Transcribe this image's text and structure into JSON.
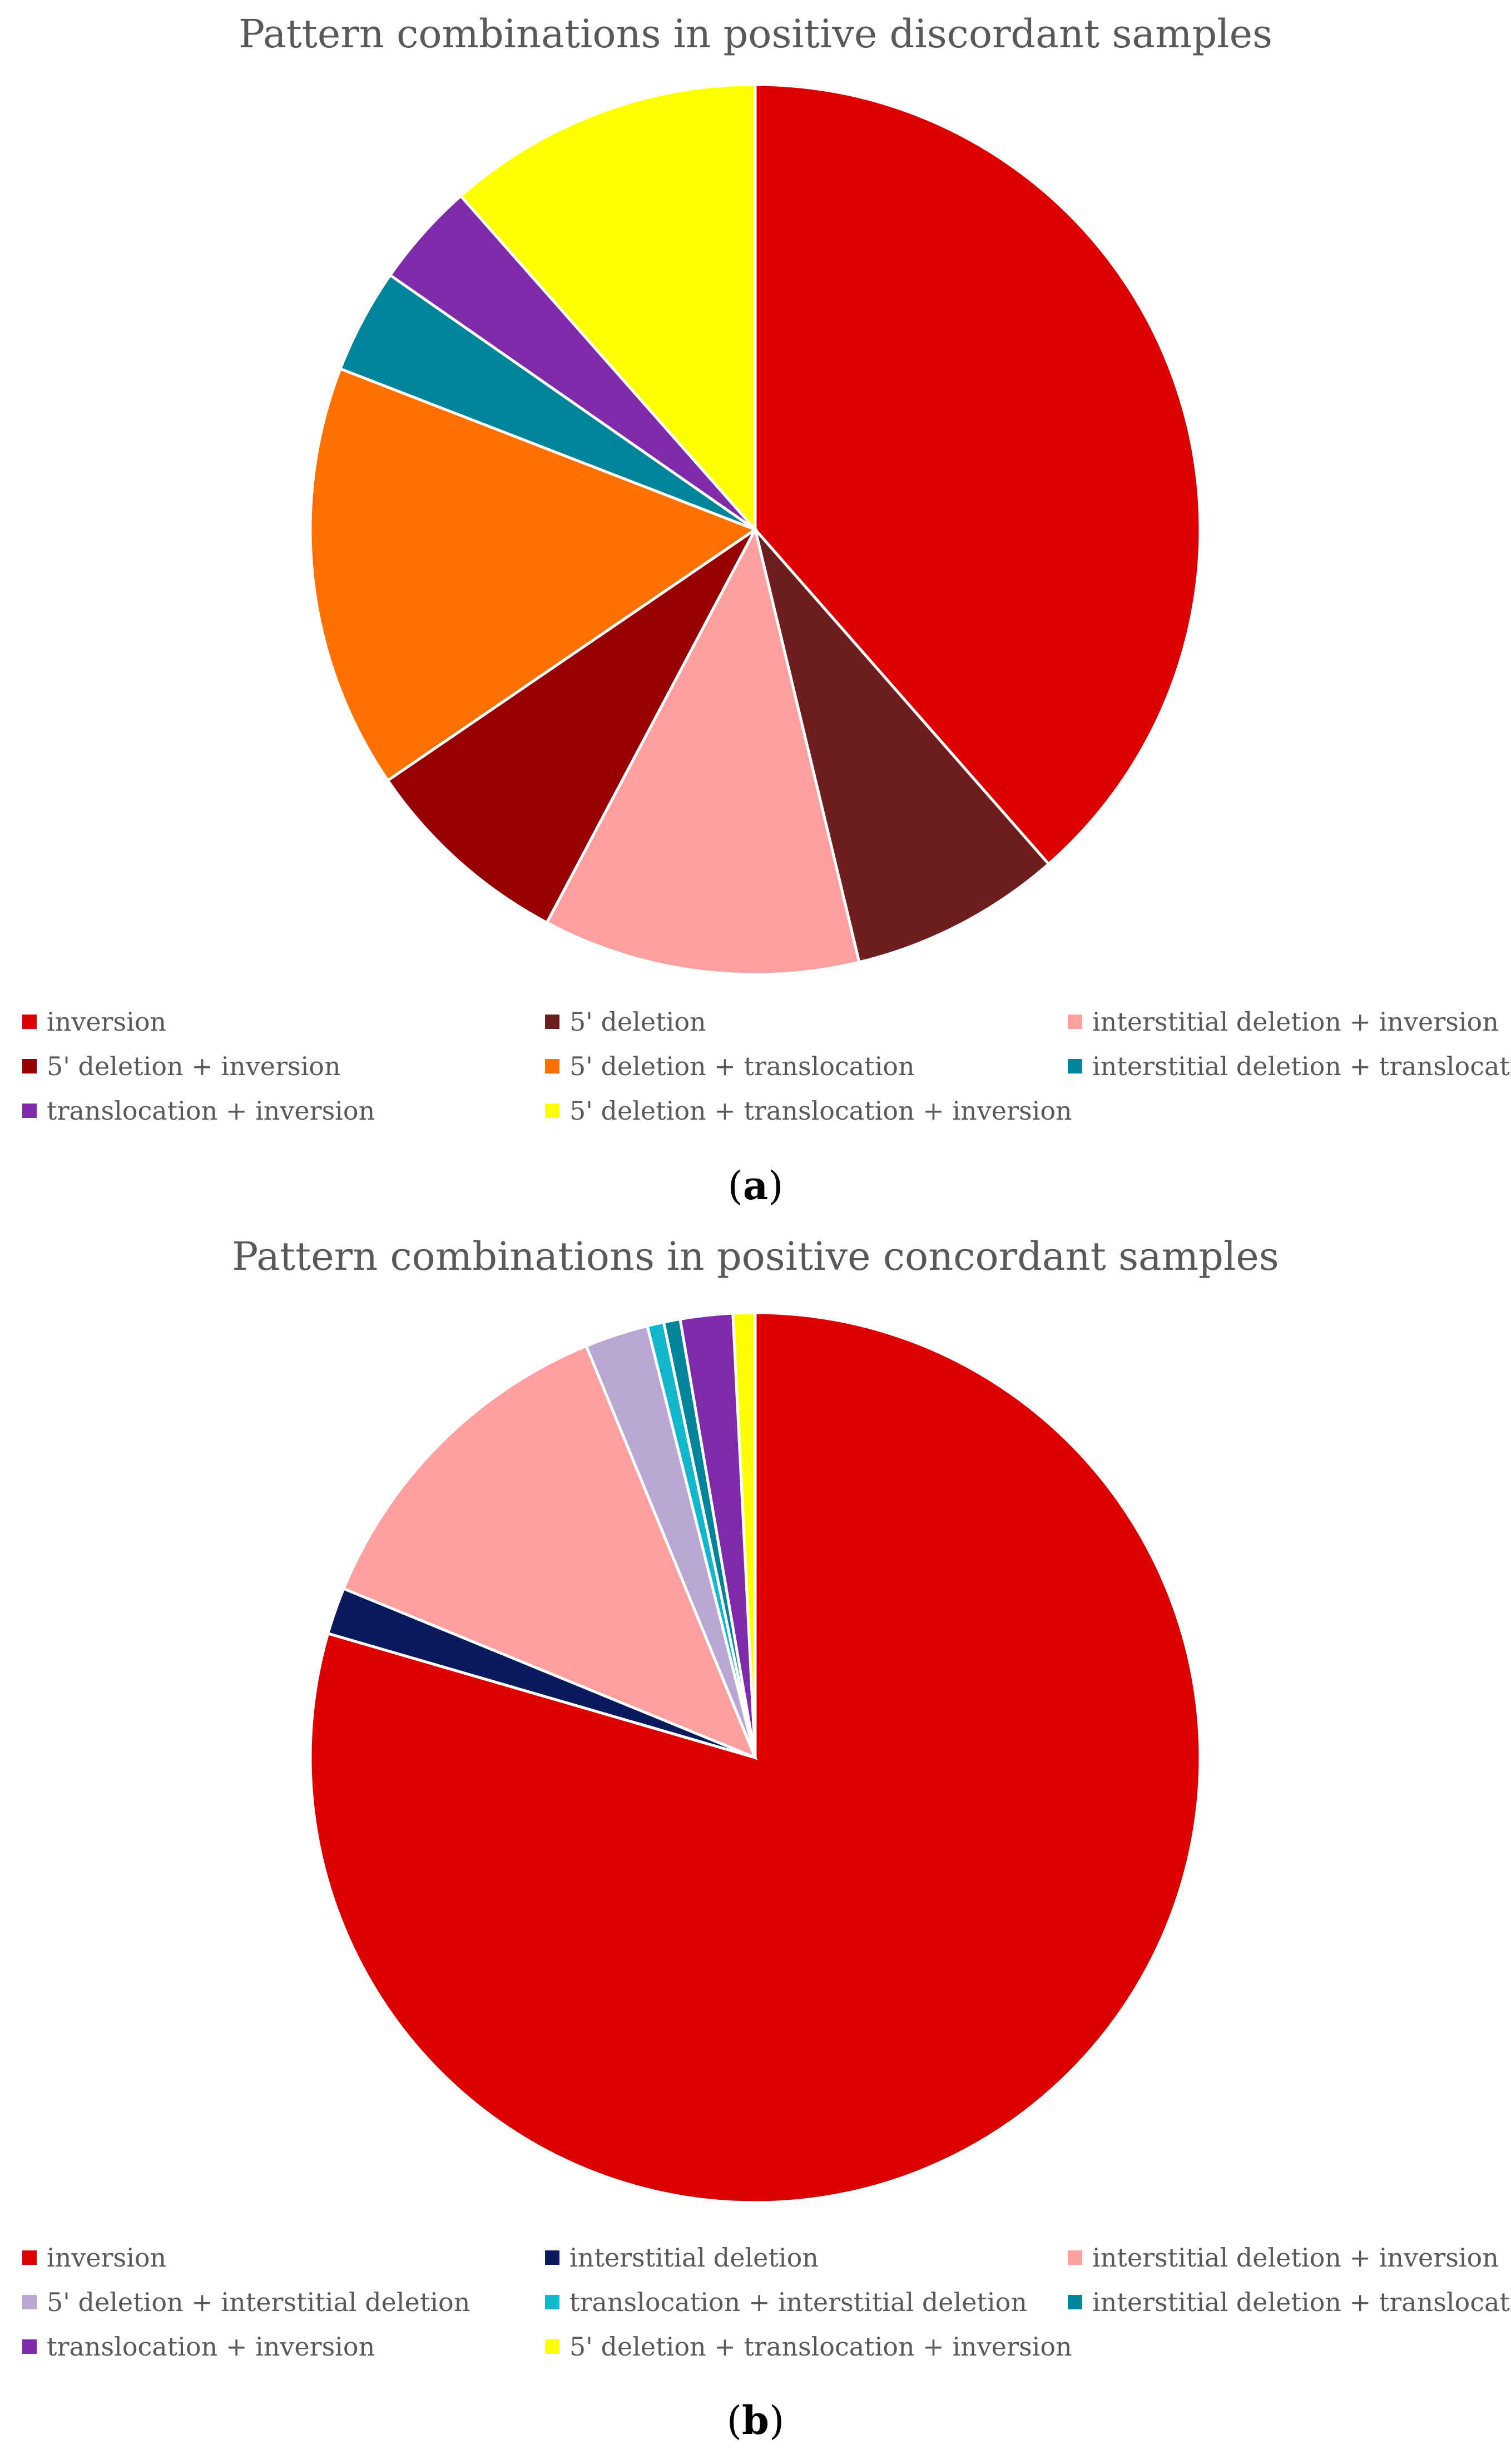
{
  "chart_data": [
    {
      "type": "pie",
      "title": "Pattern combinations in positive discordant samples",
      "panel": "a",
      "legend_position": "bottom",
      "slices": [
        {
          "label": "inversion",
          "value": 38.5,
          "color": "#DD0000"
        },
        {
          "label": "5' deletion",
          "value": 7.7,
          "color": "#6E1E1E"
        },
        {
          "label": "interstitial deletion + inversion",
          "value": 11.5,
          "color": "#FF9F9F"
        },
        {
          "label": "5' deletion + inversion",
          "value": 7.7,
          "color": "#960000"
        },
        {
          "label": "5' deletion + translocation",
          "value": 15.4,
          "color": "#FF7000"
        },
        {
          "label": "interstitial deletion + translocation",
          "value": 3.8,
          "color": "#00849A"
        },
        {
          "label": "translocation + inversion",
          "value": 3.8,
          "color": "#7F2AA8"
        },
        {
          "label": "5' deletion + translocation + inversion",
          "value": 11.5,
          "color": "#FFFF00"
        }
      ]
    },
    {
      "type": "pie",
      "title": "Pattern combinations in positive concordant samples",
      "panel": "b",
      "legend_position": "bottom",
      "slices": [
        {
          "label": "inversion",
          "value": 79.5,
          "color": "#DD0000"
        },
        {
          "label": "interstitial deletion",
          "value": 1.7,
          "color": "#0A1A5C"
        },
        {
          "label": "interstitial deletion + inversion",
          "value": 12.6,
          "color": "#FF9F9F"
        },
        {
          "label": "5' deletion + interstitial deletion",
          "value": 2.3,
          "color": "#B9A6D3"
        },
        {
          "label": "translocation + interstitial deletion",
          "value": 0.6,
          "color": "#12B7CC"
        },
        {
          "label": "interstitial deletion + translocation",
          "value": 0.6,
          "color": "#00849A"
        },
        {
          "label": "translocation + inversion",
          "value": 1.9,
          "color": "#7F2AA8"
        },
        {
          "label": "5' deletion + translocation + inversion",
          "value": 0.8,
          "color": "#FFFF00"
        }
      ]
    }
  ],
  "legends": {
    "a": [
      "inversion",
      "5' deletion",
      "interstitial deletion + inversion",
      "5' deletion + inversion",
      "5' deletion + translocation",
      "interstitial deletion + translocation",
      "translocation + inversion",
      "5' deletion + translocation + inversion"
    ],
    "b": [
      "inversion",
      "interstitial deletion",
      "interstitial deletion + inversion",
      "5' deletion + interstitial deletion",
      "translocation + interstitial deletion",
      "interstitial deletion + translocation",
      "translocation + inversion",
      "5' deletion + translocation + inversion"
    ]
  },
  "panel_labels": {
    "a": "a",
    "b": "b"
  }
}
